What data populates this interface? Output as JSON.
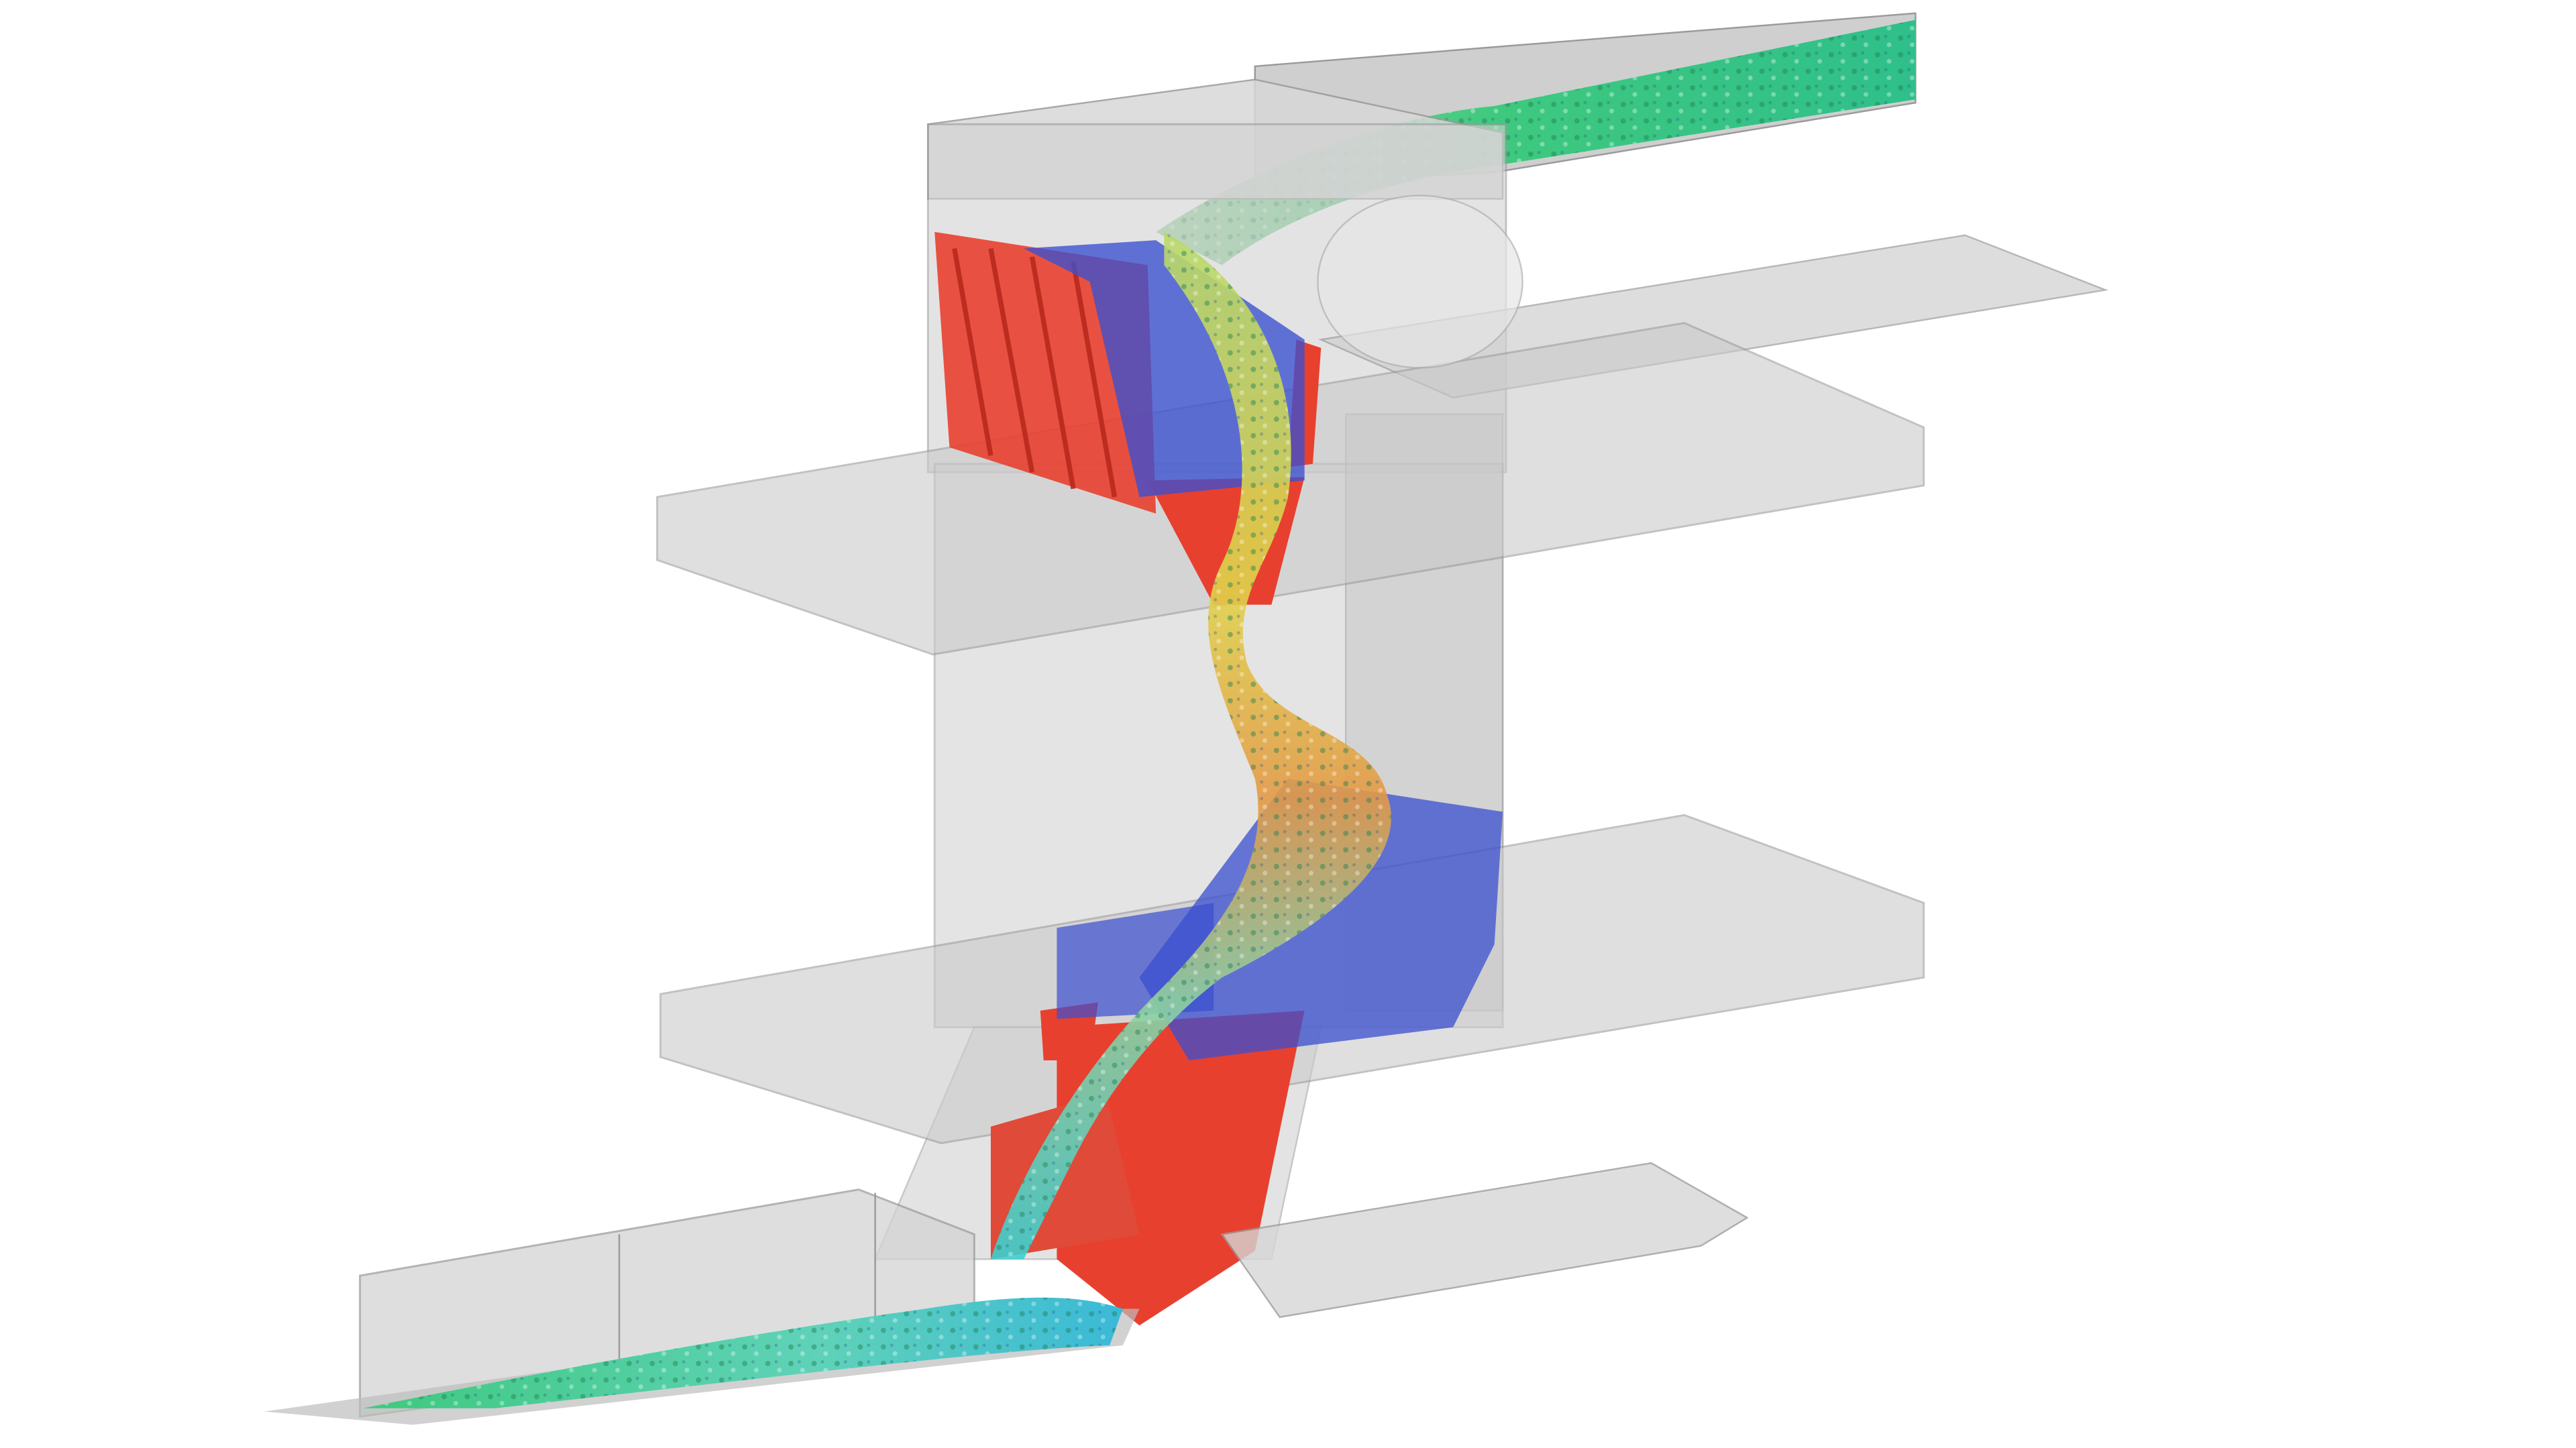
{
  "scene": {
    "colors": {
      "background": "#ffffff",
      "structure_fill": "#c9c9c9",
      "structure_light": "#dcdcdc",
      "structure_edge": "#8c8c8c",
      "red_parts": "#e8402f",
      "particles_blue": "#3a4fd0",
      "particles_cyan": "#3ad0d0",
      "particles_green": "#3ec97e",
      "particles_yellow": "#e0d24a",
      "particles_orange": "#e88a3a"
    }
  }
}
